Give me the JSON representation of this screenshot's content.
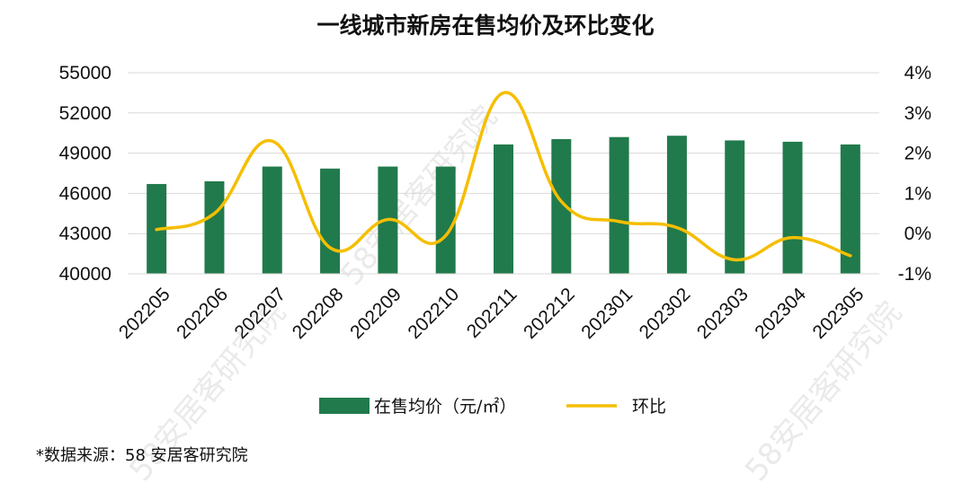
{
  "chart_data": {
    "type": "bar",
    "title": "一线城市新房在售均价及环比变化",
    "categories": [
      "202205",
      "202206",
      "202207",
      "202208",
      "202209",
      "202210",
      "202211",
      "202212",
      "202301",
      "202302",
      "202303",
      "202304",
      "202305"
    ],
    "series": [
      {
        "name": "在售均价（元/㎡）",
        "kind": "bar",
        "axis": "left",
        "color": "#217a4b",
        "values": [
          46700,
          46900,
          48000,
          47850,
          48000,
          48000,
          49650,
          50050,
          50200,
          50300,
          49950,
          49850,
          49650
        ]
      },
      {
        "name": "环比",
        "kind": "line",
        "axis": "right",
        "color": "#f5be00",
        "values": [
          0.1,
          0.5,
          2.3,
          -0.35,
          0.35,
          -0.05,
          3.5,
          0.8,
          0.3,
          0.15,
          -0.65,
          -0.1,
          -0.55
        ]
      }
    ],
    "y_left": {
      "min": 40000,
      "max": 55000,
      "ticks": [
        40000,
        43000,
        46000,
        49000,
        52000,
        55000
      ],
      "tick_labels": [
        "40000",
        "43000",
        "46000",
        "49000",
        "52000",
        "55000"
      ]
    },
    "y_right": {
      "min": -1,
      "max": 4,
      "ticks": [
        -1,
        0,
        1,
        2,
        3,
        4
      ],
      "tick_labels": [
        "-1%",
        "0%",
        "1%",
        "2%",
        "3%",
        "4%"
      ]
    },
    "grid": true,
    "legend_position": "bottom"
  },
  "source_note": "*数据来源：58 安居客研究院",
  "watermark": "58安居客研究院"
}
